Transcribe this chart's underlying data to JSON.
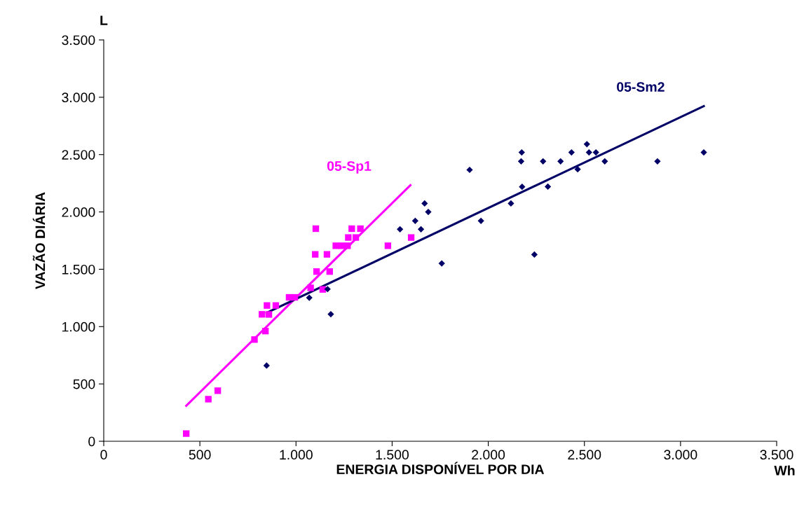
{
  "chart_data": {
    "type": "scatter",
    "xlabel": "ENERGIA DISPONÍVEL POR DIA",
    "ylabel": "VAZÃO DIÁRIA",
    "annotations": [
      "L",
      "Wh"
    ],
    "xlim": [
      0,
      3500
    ],
    "ylim": [
      0,
      3500
    ],
    "xticks": [
      0,
      500,
      {
        "value": 1000,
        "label": "1.000"
      },
      {
        "value": 1500,
        "label": "1.500"
      },
      {
        "value": 2000,
        "label": "2.000"
      },
      {
        "value": 2500,
        "label": "2.500"
      },
      {
        "value": 3000,
        "label": "3.000"
      },
      {
        "value": 3500,
        "label": "3.500"
      }
    ],
    "yticks": [
      0,
      500,
      {
        "value": 1000,
        "label": "1.000"
      },
      {
        "value": 1500,
        "label": "1.500"
      },
      {
        "value": 2000,
        "label": "2.000"
      },
      {
        "value": 2500,
        "label": "2.500"
      },
      {
        "value": 3000,
        "label": "3.000"
      },
      {
        "value": 3500,
        "label": "3.500"
      }
    ],
    "legend": false,
    "grid": false,
    "series": [
      {
        "color": "#ff00ff",
        "marker": "square",
        "x": [
          429,
          544,
          593,
          784,
          841,
          823,
          859,
          849,
          895,
          964,
          994,
          1076,
          1139,
          1107,
          1175,
          1100,
          1161,
          1103,
          1290,
          1272,
          1311,
          1207,
          1237,
          1268,
          1335,
          1478,
          1599
        ],
        "values": [
          67,
          367,
          441,
          887,
          961,
          1107,
          1106,
          1184,
          1184,
          1255,
          1255,
          1338,
          1324,
          1480,
          1480,
          1630,
          1630,
          1854,
          1854,
          1777,
          1777,
          1705,
          1705,
          1705,
          1854,
          1705,
          1777
        ]
      },
      {
        "color": "#000066",
        "marker": "diamond",
        "x": [
          847,
          1069,
          1164,
          1181,
          1541,
          1620,
          1650,
          1688,
          1669,
          1758,
          1903,
          1962,
          2118,
          2174,
          2171,
          2176,
          2240,
          2285,
          2310,
          2376,
          2433,
          2465,
          2513,
          2524,
          2560,
          2606,
          2880,
          3121
        ],
        "values": [
          660,
          1252,
          1327,
          1108,
          1849,
          1922,
          1849,
          2000,
          2074,
          1551,
          2367,
          1922,
          2074,
          2519,
          2441,
          2219,
          1628,
          2441,
          2221,
          2441,
          2519,
          2372,
          2591,
          2519,
          2519,
          2441,
          2441,
          2519
        ]
      },
      {
        "type": "line",
        "name": "05-Sp1",
        "color": "#ff00ff",
        "x": [
          429,
          1595
        ],
        "values": [
          310,
          2233
        ]
      },
      {
        "type": "line",
        "name": "05-Sm2",
        "color": "#000066",
        "x": [
          847,
          3121
        ],
        "values": [
          1120,
          2923
        ]
      }
    ]
  }
}
